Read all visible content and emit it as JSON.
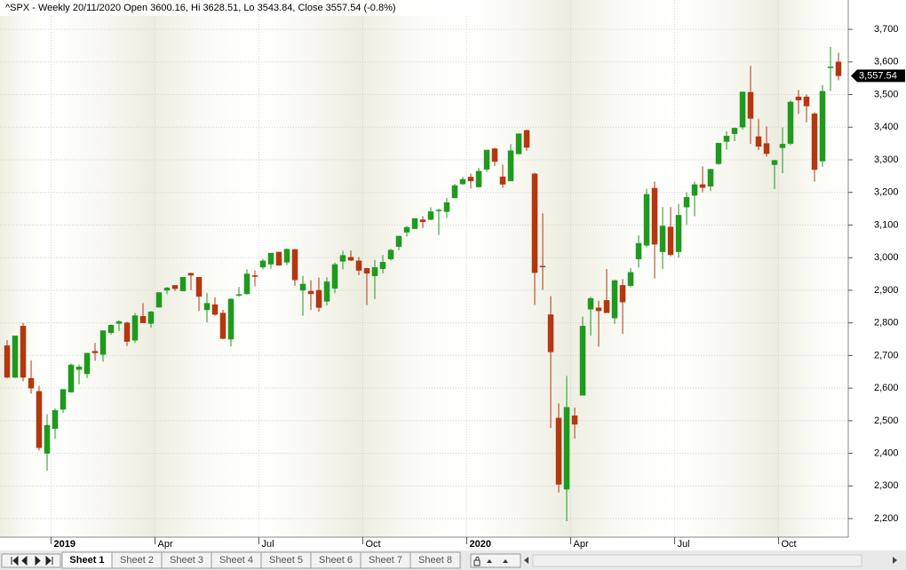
{
  "chart_data": {
    "type": "candlestick",
    "title": "^SPX - Weekly 20/11/2020 Open 3600.16, Hi 3628.51, Lo 3543.84, Close 3557.54 (-0.8%)",
    "categories": [
      null,
      null,
      null,
      null,
      null,
      null,
      "2019",
      null,
      null,
      null,
      null,
      null,
      null,
      null,
      null,
      null,
      null,
      null,
      null,
      "Apr",
      null,
      null,
      null,
      null,
      null,
      null,
      null,
      null,
      null,
      null,
      null,
      null,
      "Jul",
      null,
      null,
      null,
      null,
      null,
      null,
      null,
      null,
      null,
      null,
      null,
      null,
      "Oct",
      null,
      null,
      null,
      null,
      null,
      null,
      null,
      null,
      null,
      null,
      null,
      null,
      "2020",
      null,
      null,
      null,
      null,
      null,
      null,
      null,
      null,
      null,
      null,
      null,
      null,
      "Apr",
      null,
      null,
      null,
      null,
      null,
      null,
      null,
      null,
      null,
      null,
      null,
      null,
      "Jul",
      null,
      null,
      null,
      null,
      null,
      null,
      null,
      null,
      null,
      null,
      null,
      null,
      "Oct",
      null,
      null,
      null,
      null,
      null,
      null,
      null
    ],
    "open": [
      2730,
      2633,
      2790,
      2630,
      2590,
      2400,
      2476,
      2535,
      2588,
      2657,
      2644,
      2713,
      2703,
      2770,
      2798,
      2800,
      2747,
      2820,
      2798,
      2848,
      2900,
      2915,
      2898,
      2952,
      2940,
      2840,
      2856,
      2830,
      2750,
      2885,
      2889,
      2945,
      2971,
      2980,
      3017,
      2986,
      3025,
      2900,
      2897,
      2900,
      2866,
      2906,
      2989,
      3001,
      2990,
      2967,
      2944,
      2966,
      2996,
      3034,
      3078,
      3089,
      3116,
      3117,
      3144,
      3141,
      3183,
      3226,
      3247,
      3217,
      3271,
      3334,
      3248,
      3235,
      3318,
      3390,
      3257,
      2974,
      2825,
      2508,
      2290,
      2515,
      2578,
      2842,
      2846,
      2869,
      2815,
      2915,
      2914,
      2996,
      3038,
      3213,
      3018,
      3094,
      3018,
      3155,
      3191,
      3224,
      3219,
      3288,
      3356,
      3380,
      3400,
      3507,
      3371,
      3350,
      3285,
      3337,
      3350,
      3493,
      3493,
      3441,
      3296,
      3583,
      3600.16
    ],
    "high": [
      2747,
      2760,
      2800,
      2685,
      2607,
      2520,
      2538,
      2597,
      2675,
      2672,
      2708,
      2738,
      2775,
      2795,
      2808,
      2804,
      2830,
      2860,
      2836,
      2894,
      2910,
      2915,
      2940,
      2954,
      2940,
      2892,
      2878,
      2840,
      2875,
      2910,
      2964,
      2961,
      2996,
      3014,
      3018,
      3028,
      3027,
      2944,
      2931,
      2939,
      2940,
      2985,
      3021,
      3022,
      3002,
      2969,
      2993,
      3008,
      3027,
      3066,
      3097,
      3120,
      3127,
      3154,
      3150,
      3183,
      3226,
      3248,
      3258,
      3275,
      3330,
      3337,
      3285,
      3348,
      3381,
      3393,
      3260,
      3136,
      2882,
      2553,
      2637,
      2540,
      2819,
      2880,
      2868,
      2965,
      2932,
      2934,
      2968,
      3068,
      3211,
      3233,
      3155,
      3155,
      3165,
      3200,
      3233,
      3280,
      3272,
      3352,
      3387,
      3399,
      3509,
      3588,
      3425,
      3402,
      3300,
      3399,
      3482,
      3514,
      3500,
      3446,
      3529,
      3646,
      3628.51
    ],
    "low": [
      2631,
      2631,
      2621,
      2583,
      2409,
      2346,
      2444,
      2524,
      2586,
      2612,
      2631,
      2684,
      2681,
      2764,
      2775,
      2729,
      2739,
      2800,
      2785,
      2848,
      2888,
      2898,
      2898,
      2900,
      2836,
      2801,
      2822,
      2750,
      2728,
      2880,
      2887,
      2912,
      2964,
      2966,
      2975,
      2977,
      2914,
      2822,
      2840,
      2834,
      2853,
      2891,
      2964,
      2990,
      2946,
      2855,
      2873,
      2952,
      2991,
      3023,
      3065,
      3087,
      3091,
      3115,
      3070,
      3122,
      3183,
      3223,
      3212,
      3215,
      3263,
      3281,
      3214,
      3235,
      3318,
      3328,
      2855,
      2901,
      2478,
      2280,
      2192,
      2445,
      2578,
      2761,
      2727,
      2830,
      2797,
      2766,
      2909,
      2970,
      3032,
      2936,
      2965,
      3004,
      3000,
      3101,
      3127,
      3200,
      3204,
      3285,
      3331,
      3357,
      3393,
      3349,
      3330,
      3310,
      3210,
      3259,
      3345,
      3441,
      3415,
      3233,
      3279,
      3511,
      3543.84
    ],
    "close": [
      2633,
      2760,
      2633,
      2600,
      2417,
      2486,
      2532,
      2596,
      2671,
      2665,
      2707,
      2708,
      2776,
      2793,
      2804,
      2743,
      2822,
      2800,
      2834,
      2893,
      2907,
      2905,
      2940,
      2946,
      2881,
      2860,
      2826,
      2752,
      2873,
      2887,
      2950,
      2942,
      2990,
      3014,
      2977,
      3026,
      2932,
      2919,
      2889,
      2847,
      2926,
      2979,
      3007,
      2992,
      2961,
      2952,
      2970,
      2986,
      3023,
      3066,
      3093,
      3120,
      3110,
      3141,
      3146,
      3169,
      3221,
      3240,
      3235,
      3265,
      3330,
      3295,
      3225,
      3328,
      3380,
      3338,
      2954,
      2972,
      2711,
      2305,
      2541,
      2489,
      2790,
      2875,
      2837,
      2831,
      2930,
      2864,
      2955,
      3044,
      3194,
      3041,
      3097,
      3009,
      3130,
      3185,
      3224,
      3215,
      3271,
      3351,
      3373,
      3397,
      3508,
      3427,
      3341,
      3319,
      3298,
      3348,
      3477,
      3483,
      3465,
      3270,
      3510,
      3585,
      3557.54
    ],
    "up_color": "#1f9a1f",
    "down_color": "#b5360f",
    "ylim": [
      2143,
      3790
    ],
    "yticks": [
      {
        "value": 2200,
        "label": "2,200"
      },
      {
        "value": 2300,
        "label": "2,300"
      },
      {
        "value": 2400,
        "label": "2,400"
      },
      {
        "value": 2500,
        "label": "2,500"
      },
      {
        "value": 2600,
        "label": "2,600"
      },
      {
        "value": 2700,
        "label": "2,700"
      },
      {
        "value": 2800,
        "label": "2,800"
      },
      {
        "value": 2900,
        "label": "2,900"
      },
      {
        "value": 3000,
        "label": "3,000"
      },
      {
        "value": 3100,
        "label": "3,100"
      },
      {
        "value": 3200,
        "label": "3,200"
      },
      {
        "value": 3300,
        "label": "3,300"
      },
      {
        "value": 3400,
        "label": "3,400"
      },
      {
        "value": 3500,
        "label": "3,500"
      },
      {
        "value": 3600,
        "label": "3,600"
      },
      {
        "value": 3700,
        "label": "3,700"
      }
    ],
    "grid": true,
    "last_price": {
      "value": 3557.54,
      "label": "3,557.54"
    }
  },
  "sheet_tabs": [
    "Sheet 1",
    "Sheet 2",
    "Sheet 3",
    "Sheet 4",
    "Sheet 5",
    "Sheet 6",
    "Sheet 7",
    "Sheet 8"
  ],
  "active_tab": 0
}
